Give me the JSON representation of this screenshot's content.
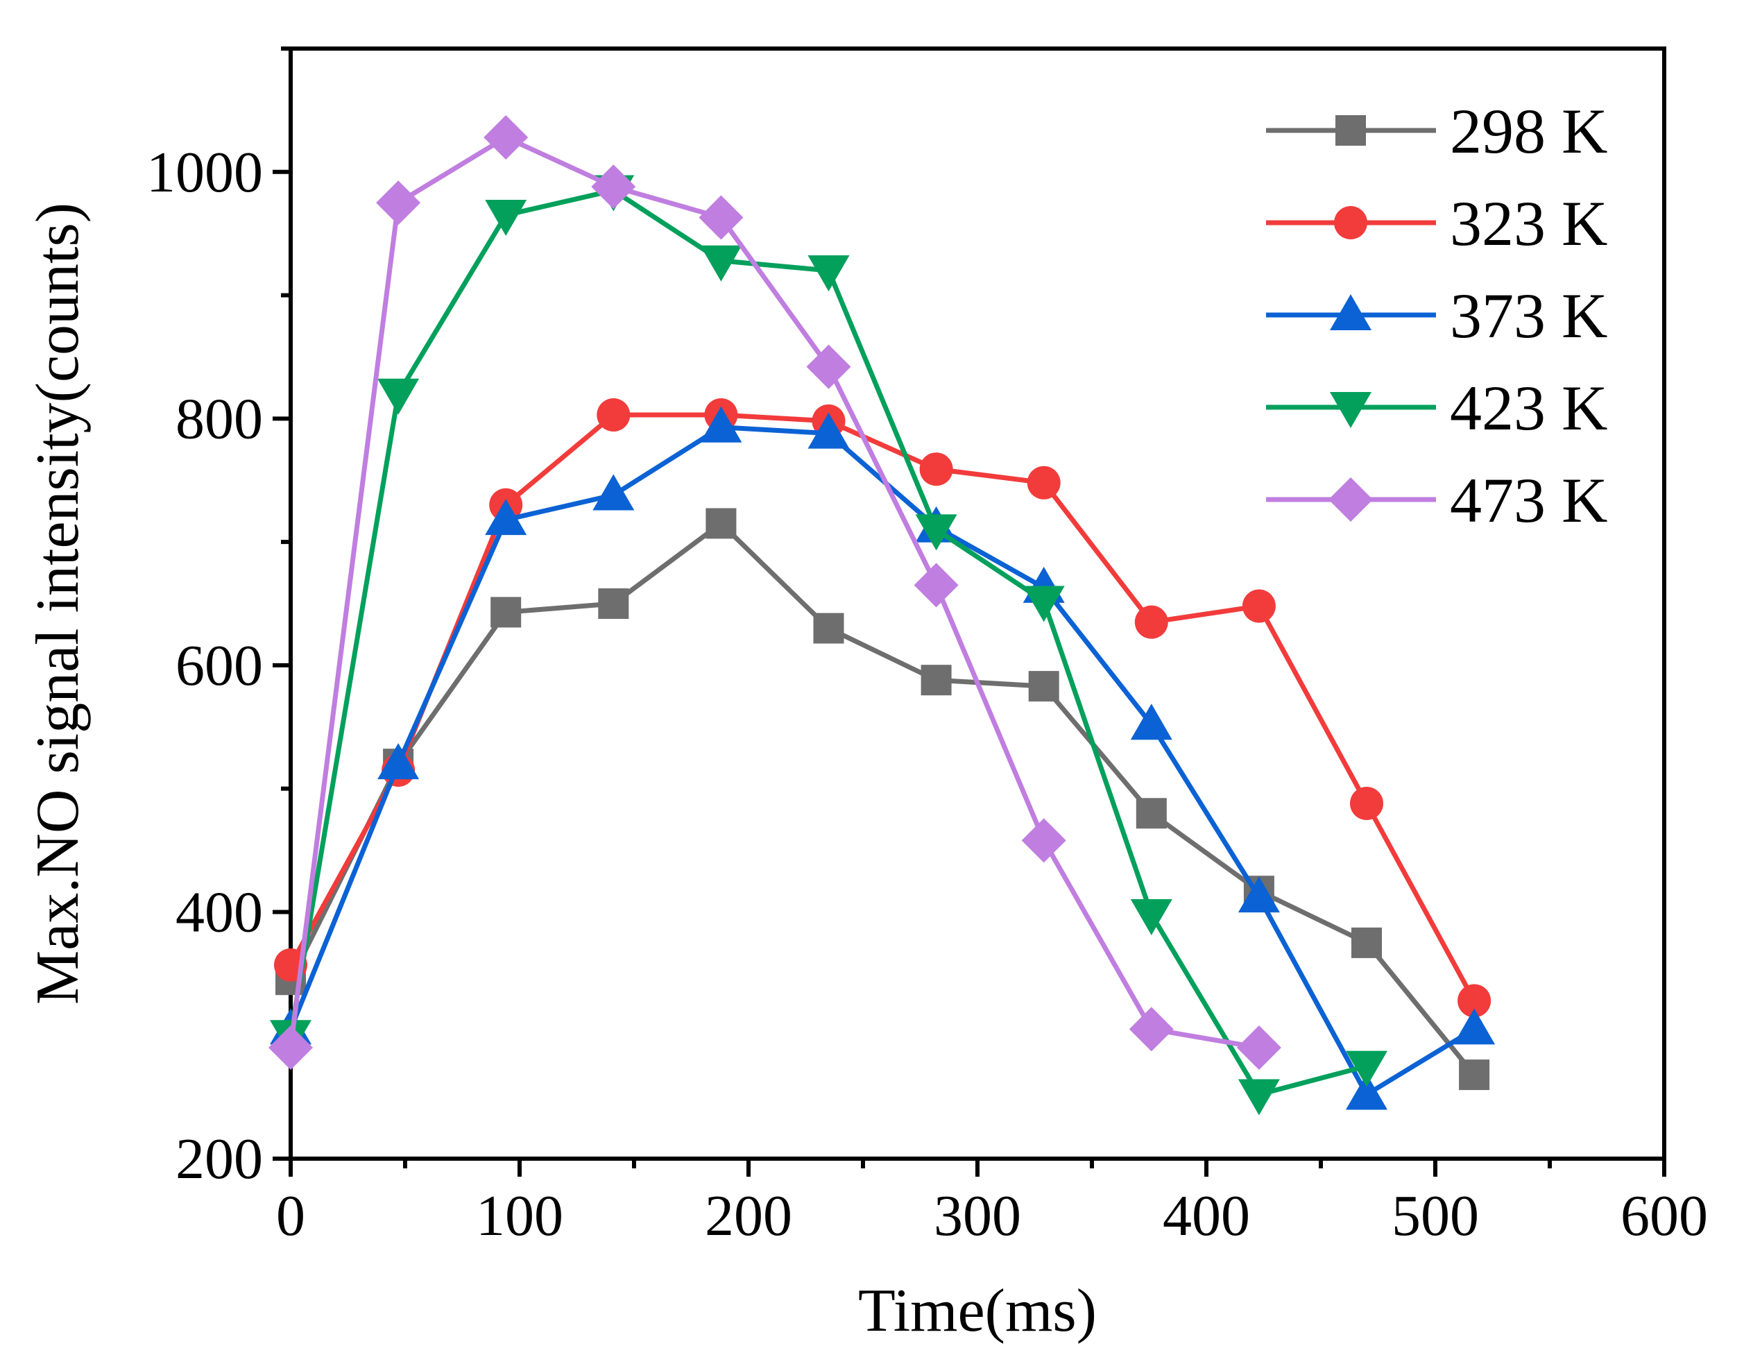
{
  "chart_data": {
    "type": "line",
    "title": "",
    "xlabel": "Time(ms)",
    "ylabel": "Max.NO signal intensity(counts)",
    "xlim": [
      0,
      600
    ],
    "ylim": [
      200,
      1100
    ],
    "xticks": [
      0,
      100,
      200,
      300,
      400,
      500,
      600
    ],
    "xtick_labels": [
      "0",
      "100",
      "200",
      "300",
      "400",
      "500",
      "600"
    ],
    "yticks": [
      200,
      400,
      600,
      800,
      1000
    ],
    "ytick_labels": [
      "200",
      "400",
      "600",
      "800",
      "1000"
    ],
    "grid": false,
    "legend_position": "top-right",
    "series": [
      {
        "name": "298 K",
        "color": "#6e6e6e",
        "marker": "square",
        "x": [
          0,
          47,
          94,
          141,
          188,
          235,
          282,
          329,
          376,
          423,
          470,
          517
        ],
        "y": [
          345,
          520,
          643,
          650,
          715,
          630,
          588,
          583,
          480,
          417,
          375,
          268
        ]
      },
      {
        "name": "323 K",
        "color": "#f23b3b",
        "marker": "circle",
        "x": [
          0,
          47,
          94,
          141,
          188,
          235,
          282,
          329,
          376,
          423,
          470,
          517
        ],
        "y": [
          357,
          515,
          730,
          803,
          803,
          798,
          759,
          748,
          635,
          648,
          488,
          328
        ]
      },
      {
        "name": "373 K",
        "color": "#0b62d4",
        "marker": "triangle-up",
        "x": [
          0,
          47,
          94,
          141,
          188,
          235,
          282,
          329,
          376,
          423,
          470,
          517
        ],
        "y": [
          305,
          520,
          718,
          738,
          793,
          788,
          712,
          663,
          552,
          412,
          252,
          305
        ]
      },
      {
        "name": "423 K",
        "color": "#03a05c",
        "marker": "triangle-down",
        "x": [
          0,
          47,
          94,
          141,
          188,
          235,
          282,
          329,
          376,
          423,
          470
        ],
        "y": [
          300,
          820,
          965,
          985,
          928,
          920,
          710,
          652,
          398,
          252,
          275
        ]
      },
      {
        "name": "473 K",
        "color": "#c07ee0",
        "marker": "diamond",
        "x": [
          0,
          47,
          94,
          141,
          188,
          235,
          282,
          329,
          376,
          423
        ],
        "y": [
          290,
          975,
          1028,
          988,
          963,
          842,
          665,
          458,
          305,
          290
        ]
      }
    ]
  }
}
